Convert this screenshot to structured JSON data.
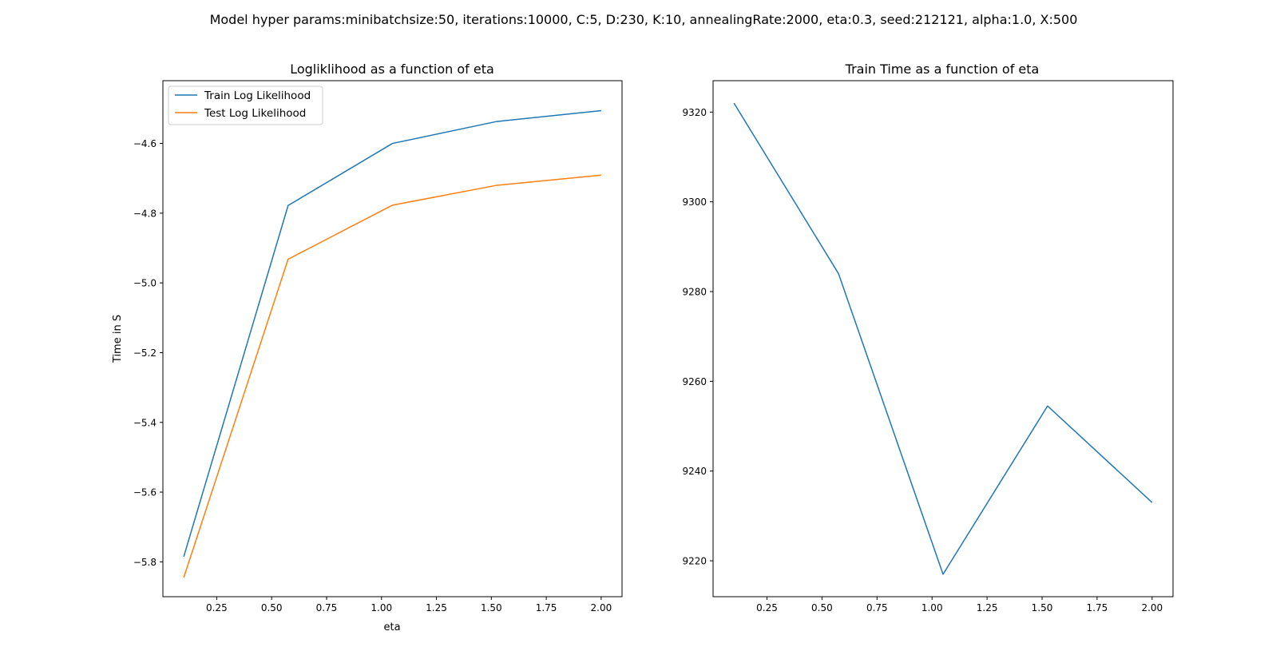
{
  "figure": {
    "suptitle": "Model hyper params:minibatchsize:50, iterations:10000, C:5, D:230, K:10, annealingRate:2000, eta:0.3, seed:212121, alpha:1.0, X:500"
  },
  "chart_data": [
    {
      "type": "line",
      "title": "Logliklihood as a function of eta",
      "xlabel": "eta",
      "ylabel": "Time in S",
      "xlim": [
        -0.0
      ],
      "_xlim_note": "",
      "x": [
        0.1,
        0.575,
        1.05,
        1.525,
        2.0
      ],
      "xticks": [
        "0.25",
        "0.50",
        "0.75",
        "1.00",
        "1.25",
        "1.50",
        "1.75",
        "2.00"
      ],
      "yticks": [
        "−4.6",
        "−4.8",
        "−5.0",
        "−5.2",
        "−5.4",
        "−5.6",
        "−5.8"
      ],
      "ylim": [
        -5.9,
        -4.42
      ],
      "grid": false,
      "legend_position": "upper-left",
      "series": [
        {
          "name": "Train Log Likelihood",
          "color": "#1f77b4",
          "values": [
            -5.785,
            -4.778,
            -4.6,
            -4.537,
            -4.506
          ]
        },
        {
          "name": "Test Log Likelihood",
          "color": "#ff7f0e",
          "values": [
            -5.845,
            -4.932,
            -4.777,
            -4.72,
            -4.691
          ]
        }
      ]
    },
    {
      "type": "line",
      "title": "Train Time as a function of eta",
      "xlabel": "",
      "ylabel": "",
      "x": [
        0.1,
        0.575,
        1.05,
        1.525,
        2.0
      ],
      "xticks": [
        "0.25",
        "0.50",
        "0.75",
        "1.00",
        "1.25",
        "1.50",
        "1.75",
        "2.00"
      ],
      "yticks": [
        "9320",
        "9300",
        "9280",
        "9260",
        "9240",
        "9220"
      ],
      "ylim": [
        9212,
        9327
      ],
      "grid": false,
      "series": [
        {
          "color": "#1f77b4",
          "values": [
            9322,
            9284,
            9217,
            9254.5,
            9233
          ]
        }
      ]
    }
  ]
}
